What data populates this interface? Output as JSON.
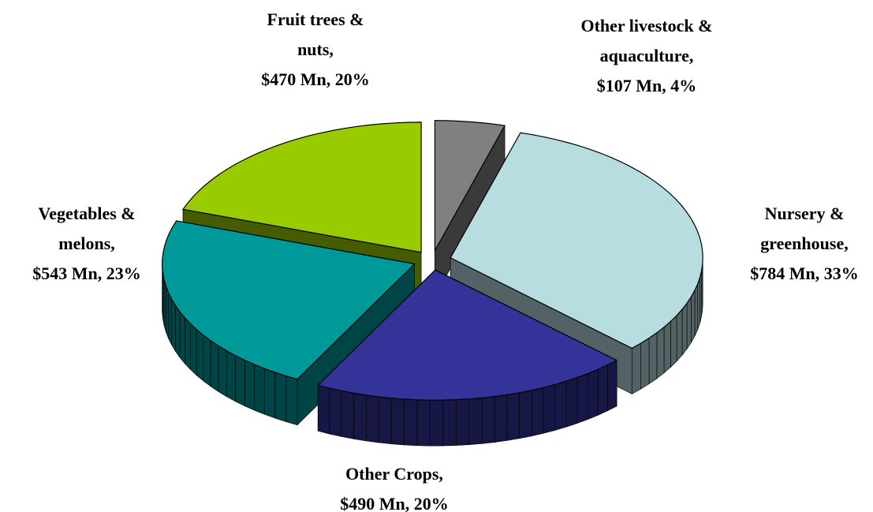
{
  "chart_data": {
    "type": "pie3d",
    "categories": [
      "Other livestock & aquaculture,",
      "Nursery & greenhouse,",
      "Other Crops,",
      "Vegetables & melons,",
      "Fruit trees & nuts,"
    ],
    "values": [
      107,
      784,
      490,
      543,
      470
    ],
    "value_labels": [
      "$107 Mn, 4%",
      "$784 Mn, 33%",
      "$490 Mn, 20%",
      "$543 Mn, 23%",
      "$470 Mn, 20%"
    ],
    "colors": [
      "#808080",
      "#b8dde0",
      "#333399",
      "#009999",
      "#99cc00"
    ]
  }
}
